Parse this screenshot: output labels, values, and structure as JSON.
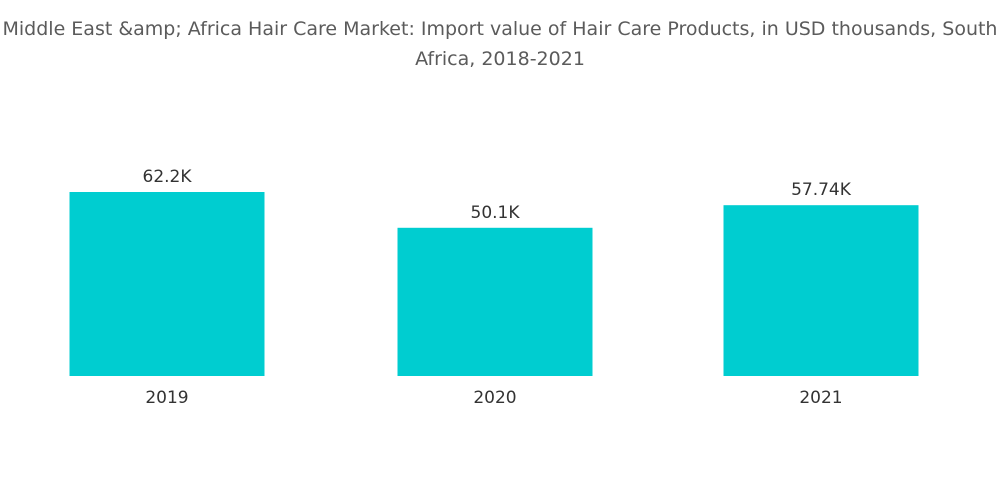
{
  "chart_data": {
    "type": "bar",
    "title": "Middle East &amp; Africa Hair Care Market: Import value of Hair Care Products, in USD thousands, South Africa, 2018-2021",
    "xlabel": "",
    "ylabel": "",
    "categories": [
      "2019",
      "2020",
      "2021"
    ],
    "values": [
      62.2,
      50.1,
      57.74
    ],
    "data_labels": [
      "62.2K",
      "50.1K",
      "57.74K"
    ],
    "ylim": [
      0,
      62.2
    ],
    "grid": false,
    "legend": "none",
    "colors": {
      "bar": "#00cdd0",
      "text": "#333333",
      "title": "#5b5b5b"
    }
  }
}
